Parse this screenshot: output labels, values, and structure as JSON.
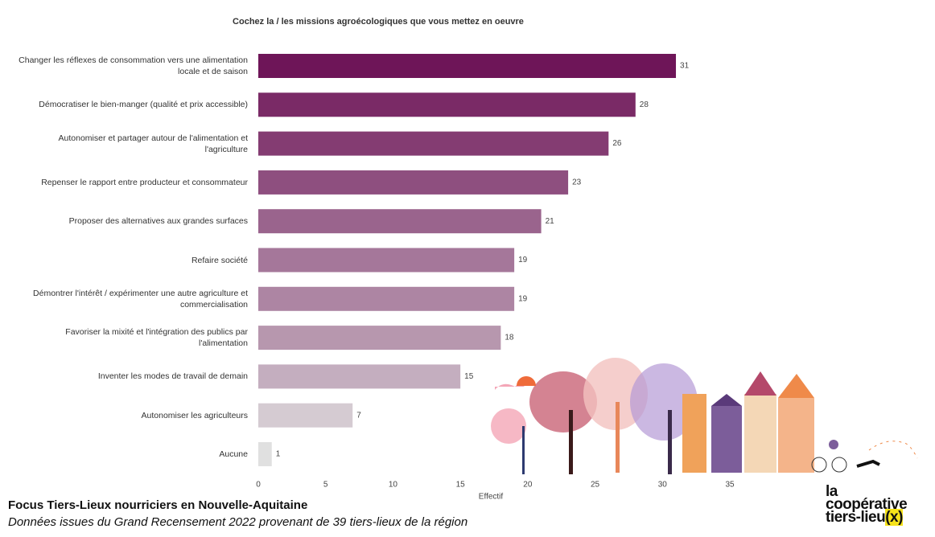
{
  "chart_data": {
    "type": "hbar",
    "title": "Cochez la / les missions agroécologiques que vous mettez en oeuvre",
    "categories": [
      "Changer les réflexes de consommation vers une alimentation locale et de saison",
      "Démocratiser le bien-manger (qualité et prix accessible)",
      "Autonomiser et partager autour de l'alimentation et l'agriculture",
      "Repenser le rapport entre producteur et consommateur",
      "Proposer des alternatives aux grandes surfaces",
      "Refaire société",
      "Démontrer l'intérêt / expérimenter une autre agriculture et commercialisation",
      "Favoriser la mixité et l'intégration des publics par l'alimentation",
      "Inventer les modes de travail de demain",
      "Autonomiser les agriculteurs",
      "Aucune"
    ],
    "values": [
      31,
      28,
      26,
      23,
      21,
      19,
      19,
      18,
      15,
      7,
      1
    ],
    "colors": [
      "#6e1558",
      "#7a2a66",
      "#843c72",
      "#8e4f7f",
      "#9a648d",
      "#a5779a",
      "#ad85a3",
      "#b797ae",
      "#c4aebf",
      "#d5cbd2",
      "#e0e0e0"
    ],
    "xlabel": "Effectif",
    "xlim": [
      0,
      35
    ],
    "xticks": [
      0,
      5,
      10,
      15,
      20,
      25,
      30,
      35
    ]
  },
  "footer": {
    "title": "Focus Tiers-Lieux nourriciers en Nouvelle-Aquitaine",
    "subtitle": "Données issues du Grand Recensement 2022 provenant de 39 tiers-lieux de la région"
  },
  "logo": {
    "line1": "la",
    "line2": "coopérative",
    "line3": "tiers-lieu",
    "mark": "(x)"
  }
}
